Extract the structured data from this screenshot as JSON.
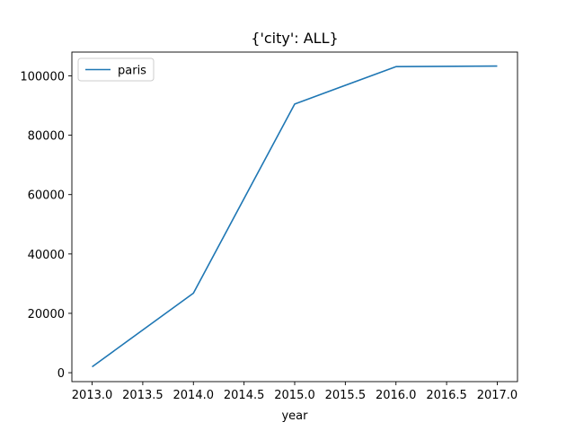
{
  "chart_data": {
    "type": "line",
    "title": "{'city': ALL}",
    "xlabel": "year",
    "ylabel": "",
    "x": [
      2013.0,
      2014.0,
      2015.0,
      2016.0,
      2017.0
    ],
    "series": [
      {
        "name": "paris",
        "values": [
          2000,
          26800,
          90500,
          103100,
          103300
        ]
      }
    ],
    "xlim": [
      2012.8,
      2017.2
    ],
    "ylim": [
      -3000,
      108000
    ],
    "xticks": [
      2013.0,
      2013.5,
      2014.0,
      2014.5,
      2015.0,
      2015.5,
      2016.0,
      2016.5,
      2017.0
    ],
    "xtick_labels": [
      "2013.0",
      "2013.5",
      "2014.0",
      "2014.5",
      "2015.0",
      "2015.5",
      "2016.0",
      "2016.5",
      "2017.0"
    ],
    "yticks": [
      0,
      20000,
      40000,
      60000,
      80000,
      100000
    ],
    "ytick_labels": [
      "0",
      "20000",
      "40000",
      "60000",
      "80000",
      "100000"
    ],
    "grid": false,
    "legend_position": "upper-left",
    "colors": {
      "series": "#1f77b4",
      "axes": "#000000",
      "background": "#ffffff"
    }
  }
}
